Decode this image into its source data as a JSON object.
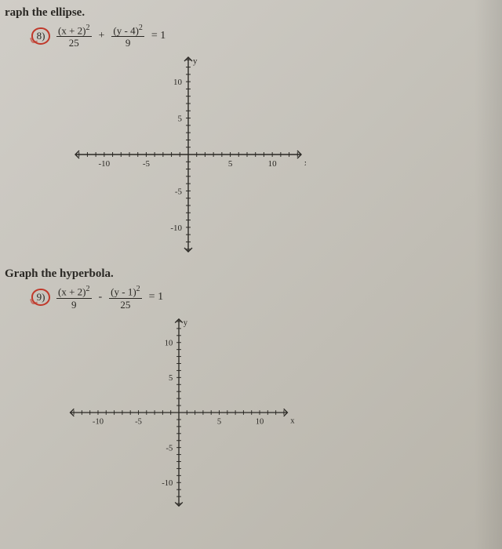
{
  "problem1": {
    "heading": "raph the ellipse.",
    "number": "8)",
    "term1_num": "(x + 2)",
    "term1_exp": "2",
    "term1_den": "25",
    "op": "+",
    "term2_num": "(y - 4)",
    "term2_exp": "2",
    "term2_den": "9",
    "eq": "= 1"
  },
  "problem2": {
    "heading": "Graph the hyperbola.",
    "number": "9)",
    "term1_num": "(x + 2)",
    "term1_exp": "2",
    "term1_den": "9",
    "op": "-",
    "term2_num": "(y - 1)",
    "term2_exp": "2",
    "term2_den": "25",
    "eq": "= 1"
  },
  "axes": {
    "type": "cartesian-grid",
    "xlim": [
      -14,
      14
    ],
    "ylim": [
      -14,
      14
    ],
    "major_ticks_x": [
      -10,
      -5,
      5,
      10
    ],
    "major_ticks_y": [
      -10,
      -5,
      5,
      10
    ],
    "tick_step": 1,
    "x_axis_label": "x",
    "y_axis_label": "y",
    "tick_labels_x": {
      "-10": "-10",
      "-5": "-5",
      "5": "5",
      "10": "10"
    },
    "tick_labels_y": {
      "-10": "-10",
      "-5": "-5",
      "5": "5",
      "10": "10"
    },
    "axis_color": "#2a2824",
    "background_color": "transparent",
    "arrow_size": 5
  },
  "styling": {
    "page_bg_gradient": [
      "#d0cdc7",
      "#c5c2ba",
      "#b8b4aa"
    ],
    "text_color": "#2a2824",
    "circle_color": "#c0392b",
    "font_family": "Georgia, Times New Roman, serif",
    "heading_fontsize_pt": 15,
    "equation_fontsize_pt": 14,
    "label_fontsize_pt": 11
  }
}
